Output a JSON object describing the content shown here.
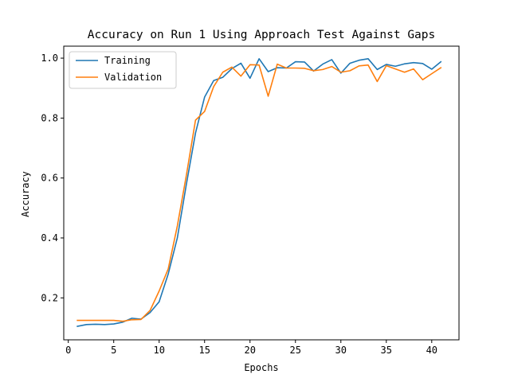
{
  "chart_data": {
    "type": "line",
    "title": "Accuracy on Run 1 Using Approach Test Against Gaps",
    "xlabel": "Epochs",
    "ylabel": "Accuracy",
    "xlim": [
      -0.5,
      43
    ],
    "ylim": [
      0.06,
      1.04
    ],
    "xticks": [
      0,
      5,
      10,
      15,
      20,
      25,
      30,
      35,
      40
    ],
    "yticks": [
      0.2,
      0.4,
      0.6,
      0.8,
      1.0
    ],
    "ytick_labels": [
      "0.2",
      "0.4",
      "0.6",
      "0.8",
      "1.0"
    ],
    "grid": false,
    "legend_position": "top-left",
    "x": [
      1,
      2,
      3,
      4,
      5,
      6,
      7,
      8,
      9,
      10,
      11,
      12,
      13,
      14,
      15,
      16,
      17,
      18,
      19,
      20,
      21,
      22,
      23,
      24,
      25,
      26,
      27,
      28,
      29,
      30,
      31,
      32,
      33,
      34,
      35,
      36,
      37,
      38,
      39,
      40,
      41
    ],
    "series": [
      {
        "name": "Training",
        "color": "#1f77b4",
        "values": [
          0.105,
          0.111,
          0.112,
          0.111,
          0.113,
          0.119,
          0.132,
          0.129,
          0.151,
          0.187,
          0.28,
          0.4,
          0.58,
          0.75,
          0.87,
          0.925,
          0.936,
          0.965,
          0.983,
          0.933,
          0.998,
          0.955,
          0.968,
          0.967,
          0.988,
          0.987,
          0.957,
          0.98,
          0.995,
          0.95,
          0.983,
          0.993,
          0.998,
          0.962,
          0.979,
          0.973,
          0.981,
          0.985,
          0.982,
          0.963,
          0.988
        ]
      },
      {
        "name": "Validation",
        "color": "#ff7f0e",
        "values": [
          0.125,
          0.125,
          0.125,
          0.125,
          0.125,
          0.122,
          0.127,
          0.128,
          0.158,
          0.223,
          0.297,
          0.44,
          0.61,
          0.793,
          0.822,
          0.905,
          0.953,
          0.97,
          0.94,
          0.978,
          0.977,
          0.873,
          0.98,
          0.967,
          0.967,
          0.966,
          0.958,
          0.962,
          0.972,
          0.953,
          0.958,
          0.974,
          0.977,
          0.922,
          0.975,
          0.964,
          0.953,
          0.964,
          0.928,
          0.948,
          0.968
        ]
      }
    ]
  }
}
